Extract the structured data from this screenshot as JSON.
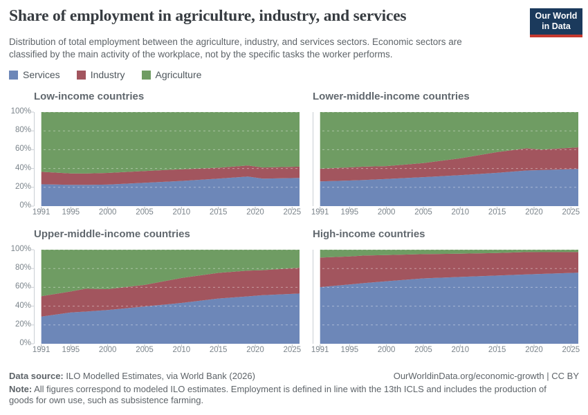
{
  "header": {
    "title": "Share of employment in agriculture, industry, and services",
    "subtitle": "Distribution of total employment between the agriculture, industry, and services sectors. Economic sectors are classified by the main activity of the workplace, not by the specific tasks the worker performs.",
    "logo": {
      "line1": "Our World",
      "line2": "in Data",
      "bg_color": "#1b3a5c",
      "bar_color": "#c5382e"
    }
  },
  "legend": {
    "items": [
      {
        "label": "Services",
        "color": "#6d87b8"
      },
      {
        "label": "Industry",
        "color": "#a2555e"
      },
      {
        "label": "Agriculture",
        "color": "#6f9c63"
      }
    ]
  },
  "axes": {
    "x_range": [
      1990,
      2026
    ],
    "y_range": [
      0,
      100
    ],
    "x_ticks": [
      {
        "label": "1991",
        "year": 1991
      },
      {
        "label": "1995",
        "year": 1995
      },
      {
        "label": "2000",
        "year": 2000
      },
      {
        "label": "2005",
        "year": 2005
      },
      {
        "label": "2010",
        "year": 2010
      },
      {
        "label": "2015",
        "year": 2015
      },
      {
        "label": "2020",
        "year": 2020
      },
      {
        "label": "2025",
        "year": 2025
      }
    ],
    "y_ticks": [
      {
        "label": "0%",
        "pct": 0
      },
      {
        "label": "20%",
        "pct": 20
      },
      {
        "label": "40%",
        "pct": 40
      },
      {
        "label": "60%",
        "pct": 60
      },
      {
        "label": "80%",
        "pct": 80
      },
      {
        "label": "100%",
        "pct": 100
      }
    ]
  },
  "chart_data": [
    {
      "type": "area",
      "stacked": true,
      "title": "Low-income countries",
      "show_y_labels": true,
      "years": [
        1991,
        1995,
        1997,
        2000,
        2005,
        2010,
        2015,
        2019,
        2021,
        2026
      ],
      "series": [
        {
          "name": "Services",
          "color": "#6d87b8",
          "values": [
            23.2,
            22.6,
            22.6,
            22.9,
            24.8,
            26.8,
            29.2,
            31.4,
            29.2,
            30.0
          ]
        },
        {
          "name": "Industry",
          "color": "#a2555e",
          "values": [
            13.3,
            12.2,
            12.0,
            12.4,
            12.5,
            12.4,
            11.6,
            11.8,
            11.9,
            12.0
          ]
        },
        {
          "name": "Agriculture",
          "color": "#6f9c63",
          "values": [
            63.5,
            65.2,
            65.4,
            64.7,
            62.7,
            60.8,
            59.2,
            56.8,
            58.9,
            58.0
          ]
        }
      ]
    },
    {
      "type": "area",
      "stacked": true,
      "title": "Lower-middle-income countries",
      "show_y_labels": false,
      "years": [
        1991,
        1995,
        1997,
        2000,
        2005,
        2010,
        2015,
        2019,
        2021,
        2026
      ],
      "series": [
        {
          "name": "Services",
          "color": "#6d87b8",
          "values": [
            26.3,
            27.2,
            27.8,
            28.9,
            30.8,
            32.9,
            35.4,
            37.9,
            38.3,
            39.5
          ]
        },
        {
          "name": "Industry",
          "color": "#a2555e",
          "values": [
            13.5,
            14.0,
            14.2,
            13.7,
            15.0,
            17.9,
            22.0,
            23.6,
            21.8,
            23.0
          ]
        },
        {
          "name": "Agriculture",
          "color": "#6f9c63",
          "values": [
            60.2,
            58.8,
            58.0,
            57.4,
            54.2,
            49.2,
            42.6,
            38.5,
            39.9,
            37.5
          ]
        }
      ]
    },
    {
      "type": "area",
      "stacked": true,
      "title": "Upper-middle-income countries",
      "show_y_labels": true,
      "years": [
        1991,
        1995,
        1997,
        2000,
        2005,
        2010,
        2015,
        2019,
        2021,
        2026
      ],
      "series": [
        {
          "name": "Services",
          "color": "#6d87b8",
          "values": [
            28.9,
            33.3,
            34.2,
            35.9,
            39.6,
            43.4,
            48.1,
            50.4,
            51.6,
            53.4
          ]
        },
        {
          "name": "Industry",
          "color": "#a2555e",
          "values": [
            21.7,
            22.3,
            24.3,
            22.2,
            23.0,
            26.5,
            27.3,
            27.3,
            26.6,
            27.4
          ]
        },
        {
          "name": "Agriculture",
          "color": "#6f9c63",
          "values": [
            49.4,
            44.4,
            41.5,
            41.9,
            37.4,
            30.1,
            24.6,
            22.3,
            21.8,
            19.2
          ]
        }
      ]
    },
    {
      "type": "area",
      "stacked": true,
      "title": "High-income countries",
      "show_y_labels": false,
      "years": [
        1991,
        1995,
        1997,
        2000,
        2005,
        2010,
        2015,
        2019,
        2021,
        2026
      ],
      "series": [
        {
          "name": "Services",
          "color": "#6d87b8",
          "values": [
            60.2,
            63.0,
            64.5,
            66.5,
            69.5,
            71.0,
            72.5,
            73.7,
            74.3,
            75.5
          ]
        },
        {
          "name": "Industry",
          "color": "#a2555e",
          "values": [
            31.4,
            29.8,
            29.3,
            27.8,
            25.8,
            24.8,
            24.0,
            23.8,
            23.1,
            22.0
          ]
        },
        {
          "name": "Agriculture",
          "color": "#6f9c63",
          "values": [
            8.4,
            7.2,
            6.2,
            5.7,
            4.7,
            4.2,
            3.5,
            2.5,
            2.6,
            2.5
          ]
        }
      ]
    }
  ],
  "footer": {
    "data_source_label": "Data source:",
    "data_source_text": " ILO Modelled Estimates, via World Bank (2026)",
    "attribution": "OurWorldinData.org/economic-growth | CC BY",
    "note_label": "Note:",
    "note_text": " All figures correspond to modeled ILO estimates. Employment is defined in line with the 13th ICLS and includes the production of goods for own use, such as subsistence farming."
  }
}
